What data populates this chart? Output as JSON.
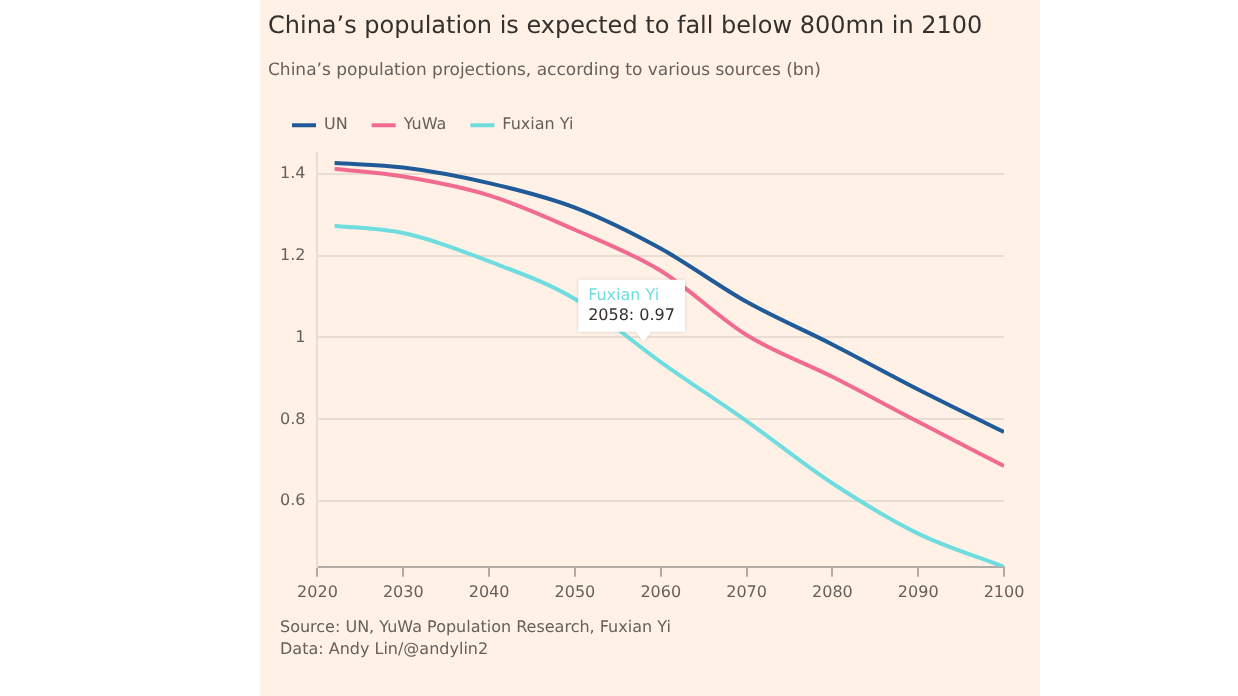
{
  "chart_data": {
    "type": "line",
    "title": "China’s population is expected to fall below 800mn in 2100",
    "subtitle": "China’s population projections, according to various sources (bn)",
    "x": [
      2022,
      2030,
      2040,
      2050,
      2060,
      2070,
      2080,
      2090,
      2100
    ],
    "series": [
      {
        "name": "UN",
        "color": "#1f5a99",
        "values": [
          1.426,
          1.415,
          1.377,
          1.317,
          1.217,
          1.087,
          0.983,
          0.873,
          0.769
        ]
      },
      {
        "name": "YuWa",
        "color": "#f06b8f",
        "values": [
          1.412,
          1.393,
          1.347,
          1.263,
          1.163,
          1.006,
          0.904,
          0.794,
          0.686
        ]
      },
      {
        "name": "Fuxian Yi",
        "color": "#6fdde0",
        "values": [
          1.273,
          1.255,
          1.186,
          1.094,
          0.94,
          0.796,
          0.644,
          0.521,
          0.44
        ]
      }
    ],
    "xlim": [
      2020,
      2100
    ],
    "xticks": [
      2020,
      2030,
      2040,
      2050,
      2060,
      2070,
      2080,
      2090,
      2100
    ],
    "ylim": [
      0.44,
      1.45
    ],
    "yticks": [
      0.6,
      0.8,
      1,
      1.2,
      1.4
    ],
    "grid": "y",
    "legend": "top left",
    "marker": "none",
    "line_style": "solid",
    "annotations": [
      {
        "text": "Fuxian Yi\n2058: 0.97",
        "x": 2058,
        "y": 0.97
      },
      "Source: UN, YuWa Population Research, Fuxian Yi",
      "Data: Andy Lin/@andylin2"
    ]
  }
}
